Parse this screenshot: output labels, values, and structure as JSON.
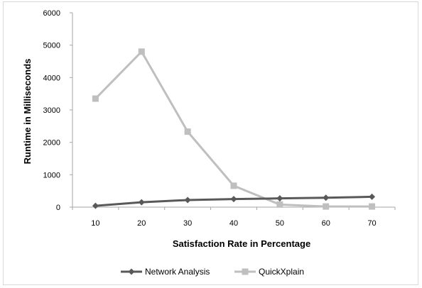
{
  "chart_data": {
    "type": "line",
    "categories": [
      "10",
      "20",
      "30",
      "40",
      "50",
      "60",
      "70"
    ],
    "series": [
      {
        "name": "Network Analysis",
        "values": [
          40,
          150,
          220,
          250,
          270,
          290,
          320
        ],
        "color": "#595959",
        "marker": "diamond"
      },
      {
        "name": "QuickXplain",
        "values": [
          3350,
          4800,
          2330,
          660,
          80,
          20,
          20
        ],
        "color": "#bfbfbf",
        "marker": "square"
      }
    ],
    "xlabel": "Satisfaction Rate in Percentage",
    "ylabel": "Runtime in Milliseconds",
    "ylim": [
      0,
      6000
    ],
    "yticks": [
      0,
      1000,
      2000,
      3000,
      4000,
      5000,
      6000
    ],
    "grid": false,
    "legend": "bottom"
  }
}
